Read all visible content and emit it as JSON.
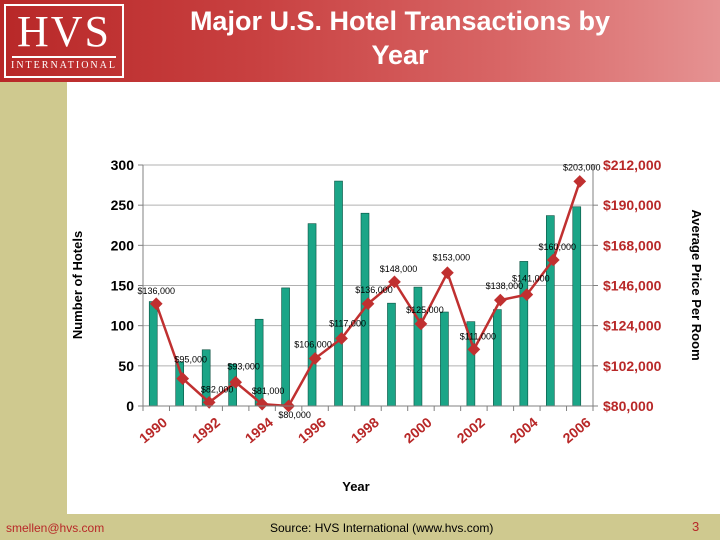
{
  "header": {
    "logo_mark": "HVS",
    "logo_sub": "INTERNATIONAL",
    "title_line1": "Major U.S. Hotel Transactions by",
    "title_line2": "Year"
  },
  "footer": {
    "email": "smellen@hvs.com",
    "source": "Source: HVS International (www.hvs.com)",
    "page": "3"
  },
  "colors": {
    "header": "#b82828",
    "bar": "#1ba587",
    "bar_edge": "#0a5040",
    "line": "#c03030",
    "band": "#cfc98f"
  },
  "chart_data": {
    "type": "bar+line",
    "x": [
      1990,
      1991,
      1992,
      1993,
      1994,
      1995,
      1996,
      1997,
      1998,
      1999,
      2000,
      2001,
      2002,
      2003,
      2004,
      2005,
      2006
    ],
    "x_tick_labels": [
      "1990",
      "1992",
      "1994",
      "1996",
      "1998",
      "2000",
      "2002",
      "2004",
      "2006"
    ],
    "xlabel": "Year",
    "left_axis": {
      "label": "Number of Hotels",
      "ylim": [
        0,
        300
      ],
      "ticks": [
        "0",
        "50",
        "100",
        "150",
        "200",
        "250",
        "300"
      ]
    },
    "right_axis": {
      "label": "Average Price Per Room",
      "ylim": [
        80000,
        212000
      ],
      "ticks": [
        "$80,000",
        "$102,000",
        "$124,000",
        "$146,000",
        "$168,000",
        "$190,000",
        "$212,000"
      ]
    },
    "series": [
      {
        "name": "Number of Hotels",
        "type": "bar",
        "axis": "left",
        "values": [
          130,
          55,
          70,
          52,
          108,
          147,
          227,
          280,
          240,
          128,
          148,
          117,
          105,
          120,
          180,
          237,
          248
        ]
      },
      {
        "name": "Average Price Per Room",
        "type": "line",
        "axis": "right",
        "values": [
          136000,
          95000,
          82000,
          93000,
          81000,
          80000,
          106000,
          117000,
          136000,
          148000,
          125000,
          153000,
          111000,
          138000,
          141000,
          160000,
          203000
        ],
        "labels": [
          "$136,000",
          "$95,000",
          "$82,000",
          "$93,000",
          "$81,000",
          "$80,000",
          "$106,000",
          "$117,000",
          "$136,000",
          "$148,000",
          "$125,000",
          "$153,000",
          "$111,000",
          "$138,000",
          "$141,000",
          "$160,000",
          "$203,000"
        ]
      }
    ]
  }
}
